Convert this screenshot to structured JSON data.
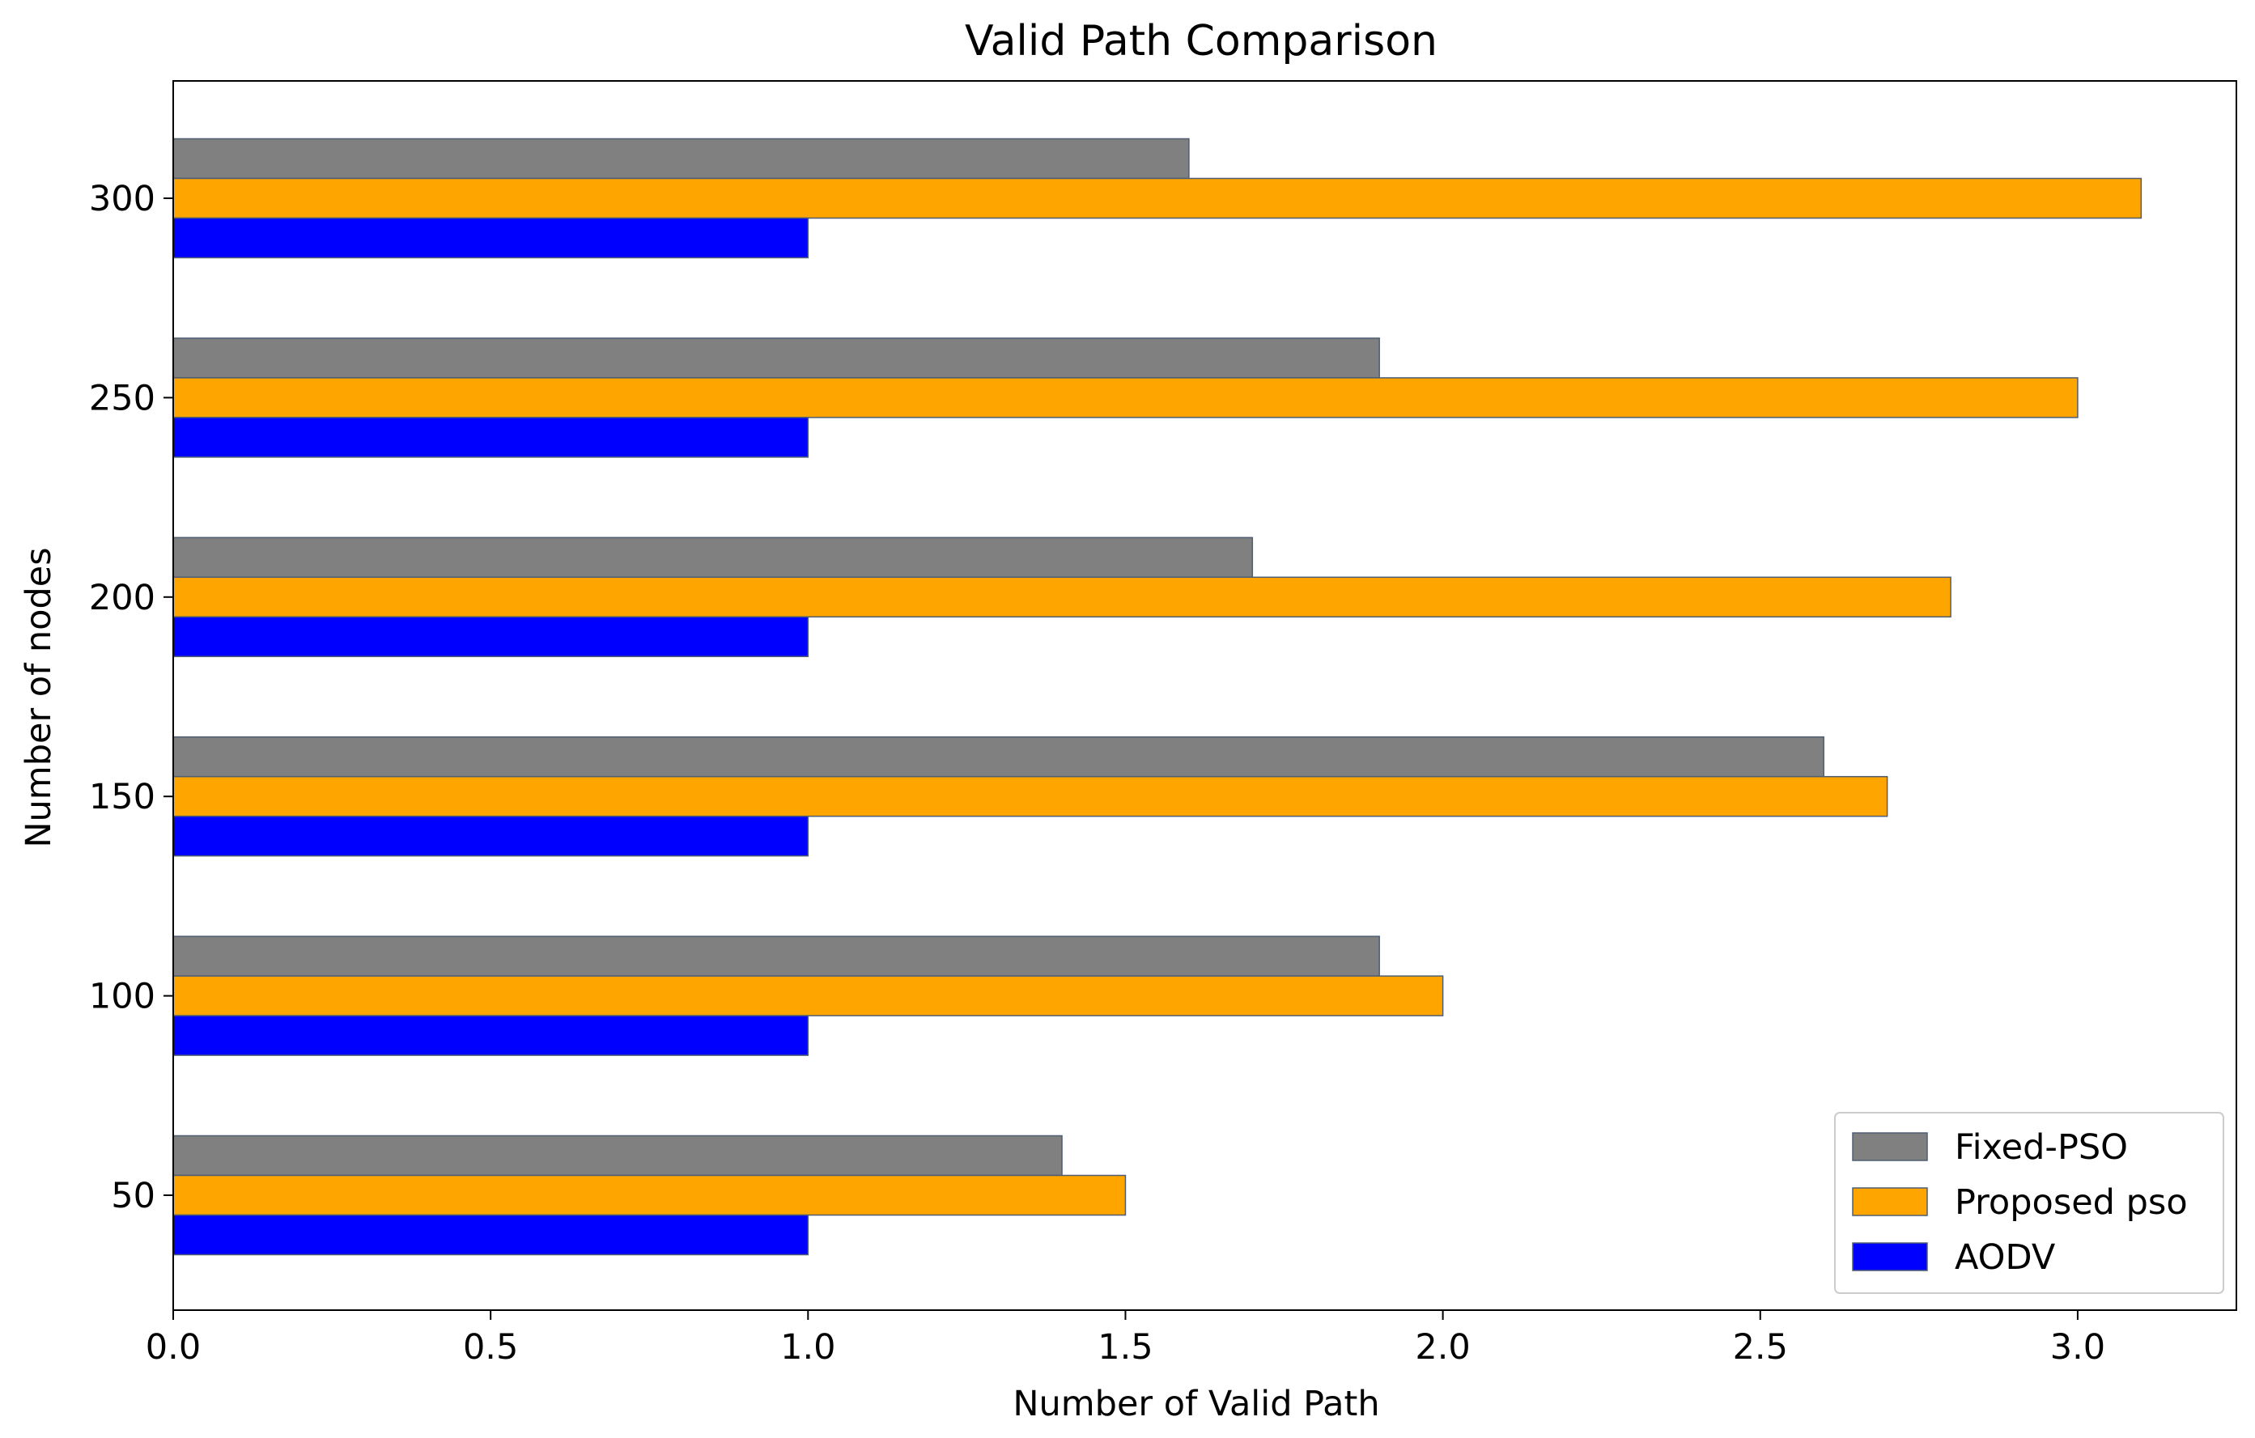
{
  "chart_data": {
    "type": "bar",
    "orientation": "horizontal",
    "title": "Valid Path Comparison",
    "xlabel": "Number of Valid Path",
    "ylabel": "Number of nodes",
    "categories": [
      "50",
      "100",
      "150",
      "200",
      "250",
      "300"
    ],
    "xlim": [
      0,
      3.25
    ],
    "xticks": [
      0.0,
      0.5,
      1.0,
      1.5,
      2.0,
      2.5,
      3.0
    ],
    "xtick_labels": [
      "0.0",
      "0.5",
      "1.0",
      "1.5",
      "2.0",
      "2.5",
      "3.0"
    ],
    "grid": false,
    "legend_position": "bottom-right",
    "series": [
      {
        "name": "Fixed-PSO",
        "color": "#808080",
        "values": [
          1.4,
          1.9,
          2.6,
          1.7,
          1.9,
          1.6
        ]
      },
      {
        "name": "Proposed pso",
        "color": "#FFA500",
        "values": [
          1.5,
          2.0,
          2.7,
          2.8,
          3.0,
          3.1
        ]
      },
      {
        "name": "AODV",
        "color": "#0000FF",
        "values": [
          1.0,
          1.0,
          1.0,
          1.0,
          1.0,
          1.0
        ]
      }
    ]
  }
}
